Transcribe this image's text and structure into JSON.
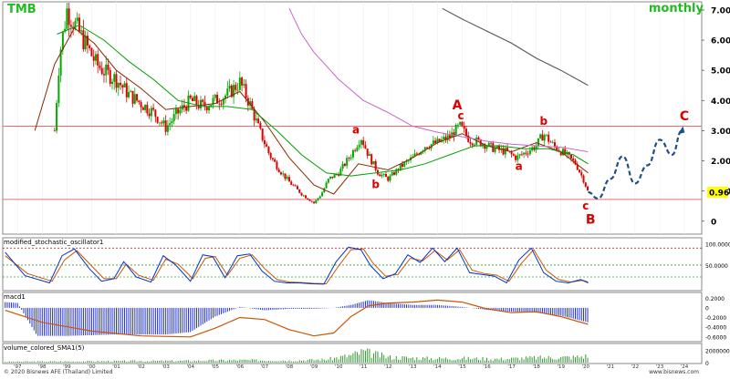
{
  "header": {
    "symbol": "TMB",
    "timeframe": "monthly"
  },
  "colors": {
    "header_text": "#22bb22",
    "candle_up": "#00aa00",
    "candle_down": "#dd0000",
    "ma_fast": "#8b2a00",
    "ma_mid": "#00a000",
    "ma_slow": "#cc66cc",
    "ma_long": "#555555",
    "wave_label": "#dd0000",
    "projection": "#1f4e8c",
    "level_line": "#e07070",
    "price_tag_bg": "#ffff00",
    "stoch_k": "#0033cc",
    "stoch_d": "#cc5500",
    "macd_hist": "#2233cc",
    "macd_signal": "#cc5500",
    "volume_bar": "#339933"
  },
  "chart_data": {
    "type": "line",
    "price_axis": {
      "ticks": [
        "7.00",
        "6.00",
        "5.00",
        "4.00",
        "3.00",
        "2.00",
        "1.00",
        "0"
      ],
      "tick_values": [
        7,
        6,
        5,
        4,
        3,
        2,
        1,
        0
      ],
      "ylim": [
        -0.4,
        7.15
      ],
      "last_price_label": "0.96"
    },
    "x_axis": {
      "labels": [
        "'97",
        "'98",
        "'99",
        "'00",
        "'01",
        "'02",
        "'03",
        "'04",
        "'05",
        "'06",
        "'07",
        "'08",
        "'09",
        "'10",
        "'11",
        "'12",
        "'13",
        "'14",
        "'15",
        "'16",
        "'17",
        "'18",
        "'19",
        "'20",
        "'21",
        "'22",
        "'23",
        "'24"
      ],
      "xlim": [
        1996.4,
        2024.7
      ]
    },
    "horizontal_levels": [
      3.15,
      0.72
    ],
    "price_series": {
      "x": [
        1998.5,
        1998.7,
        1999.0,
        1999.4,
        1999.8,
        2000.2,
        2000.6,
        2001.0,
        2001.5,
        2002.0,
        2002.5,
        2003.0,
        2003.5,
        2004.0,
        2004.5,
        2005.0,
        2005.5,
        2006.0,
        2006.4,
        2006.8,
        2007.2,
        2007.6,
        2008.0,
        2008.5,
        2009.0,
        2009.3,
        2009.6,
        2010.0,
        2010.5,
        2010.9,
        2011.2,
        2011.6,
        2012.0,
        2012.5,
        2013.0,
        2013.5,
        2014.0,
        2014.5,
        2014.9,
        2015.3,
        2015.8,
        2016.3,
        2016.8,
        2017.2,
        2017.6,
        2018.0,
        2018.3,
        2018.7,
        2019.2,
        2019.6,
        2019.9,
        2020.1
      ],
      "close": [
        3.0,
        5.5,
        7.0,
        6.4,
        5.8,
        5.2,
        4.9,
        4.7,
        4.2,
        3.9,
        3.6,
        3.1,
        3.6,
        4.0,
        3.8,
        4.0,
        4.2,
        4.6,
        3.9,
        3.0,
        2.2,
        1.7,
        1.3,
        0.9,
        0.6,
        0.9,
        1.4,
        1.6,
        2.2,
        2.8,
        2.2,
        1.6,
        1.4,
        1.8,
        2.1,
        2.5,
        2.6,
        2.8,
        3.15,
        2.7,
        2.6,
        2.4,
        2.3,
        2.1,
        2.3,
        2.5,
        2.9,
        2.5,
        2.2,
        1.9,
        1.4,
        0.96
      ]
    },
    "moving_averages": [
      {
        "x": [
          1997.7,
          1998.5,
          1999.3,
          2000.1,
          2001.0,
          2002.0,
          2003.0,
          2004.0,
          2005.0,
          2006.0,
          2007.0,
          2008.0,
          2009.0,
          2009.8,
          2010.8,
          2012.0,
          2013.0,
          2014.0,
          2015.0,
          2016.0,
          2017.0,
          2018.0,
          2019.0,
          2020.1
        ],
        "values": [
          3.0,
          5.2,
          6.4,
          5.9,
          5.0,
          4.4,
          3.7,
          3.8,
          3.9,
          4.3,
          3.3,
          2.1,
          1.2,
          0.9,
          1.9,
          1.7,
          2.1,
          2.6,
          2.9,
          2.5,
          2.3,
          2.6,
          2.3,
          1.6
        ]
      },
      {
        "x": [
          1998.6,
          1999.5,
          2000.5,
          2001.5,
          2002.5,
          2003.5,
          2004.5,
          2005.5,
          2006.5,
          2007.5,
          2008.5,
          2009.5,
          2010.5,
          2011.5,
          2012.5,
          2013.5,
          2014.5,
          2015.5,
          2016.5,
          2017.5,
          2018.5,
          2019.5,
          2020.1
        ],
        "values": [
          6.2,
          6.5,
          6.0,
          5.3,
          4.7,
          4.0,
          3.8,
          3.8,
          3.7,
          3.0,
          2.2,
          1.6,
          1.5,
          1.6,
          1.7,
          1.9,
          2.2,
          2.5,
          2.5,
          2.4,
          2.4,
          2.2,
          1.9
        ]
      },
      {
        "x": [
          2008.0,
          2008.5,
          2009.0,
          2010.0,
          2011.0,
          2012.0,
          2013.0,
          2014.0,
          2015.0,
          2016.0,
          2017.0,
          2018.0,
          2019.0,
          2020.1
        ],
        "values": [
          7.05,
          6.2,
          5.6,
          4.7,
          4.0,
          3.6,
          3.15,
          2.95,
          2.8,
          2.65,
          2.55,
          2.5,
          2.45,
          2.3
        ]
      },
      {
        "x": [
          2014.2,
          2015.0,
          2016.0,
          2017.0,
          2018.0,
          2019.0,
          2020.1
        ],
        "values": [
          7.05,
          6.7,
          6.3,
          5.9,
          5.4,
          5.0,
          4.5
        ]
      }
    ],
    "projection": {
      "x": [
        2020.1,
        2020.5,
        2021.0,
        2021.5,
        2022.0,
        2022.5,
        2023.0,
        2023.5,
        2023.9
      ],
      "values": [
        0.96,
        0.75,
        1.4,
        2.15,
        1.25,
        1.85,
        2.7,
        2.2,
        3.0
      ]
    },
    "wave_labels": [
      {
        "text": "a",
        "x": 2010.7,
        "y": 2.9
      },
      {
        "text": "b",
        "x": 2011.5,
        "y": 1.1
      },
      {
        "text": "A",
        "x": 2014.8,
        "y": 3.7
      },
      {
        "text": "c",
        "x": 2014.95,
        "y": 3.38
      },
      {
        "text": "a",
        "x": 2017.3,
        "y": 1.7
      },
      {
        "text": "b",
        "x": 2018.3,
        "y": 3.2
      },
      {
        "text": "c",
        "x": 2020.0,
        "y": 0.38
      },
      {
        "text": "B",
        "x": 2020.2,
        "y": -0.08
      },
      {
        "text": "C",
        "x": 2024.0,
        "y": 3.35
      }
    ],
    "stochastic": {
      "title": "modified_stochastic_oscillator1",
      "ticks": [
        "100.0000",
        "50.0000"
      ],
      "tick_values": [
        100,
        50
      ],
      "ylim": [
        -8,
        112
      ],
      "levels": [
        90,
        50,
        22
      ],
      "k": {
        "x": [
          1996.5,
          1997.3,
          1998.3,
          1998.8,
          1999.3,
          1999.9,
          2000.4,
          2000.9,
          2001.3,
          2001.8,
          2002.4,
          2002.9,
          2003.4,
          2004.0,
          2004.5,
          2004.9,
          2005.4,
          2005.9,
          2006.4,
          2006.9,
          2007.4,
          2007.9,
          2008.4,
          2008.9,
          2009.4,
          2009.9,
          2010.4,
          2010.9,
          2011.3,
          2011.8,
          2012.3,
          2012.8,
          2013.3,
          2013.8,
          2014.3,
          2014.8,
          2015.3,
          2015.8,
          2016.3,
          2016.8,
          2017.3,
          2017.8,
          2018.3,
          2018.8,
          2019.3,
          2019.8,
          2020.1
        ],
        "values": [
          80,
          25,
          8,
          72,
          88,
          42,
          12,
          18,
          58,
          22,
          10,
          72,
          50,
          12,
          74,
          70,
          20,
          72,
          76,
          36,
          12,
          8,
          8,
          6,
          5,
          58,
          92,
          86,
          48,
          18,
          30,
          74,
          56,
          90,
          58,
          90,
          32,
          28,
          24,
          8,
          62,
          90,
          32,
          12,
          8,
          16,
          8
        ]
      },
      "d": {
        "x": [
          1996.5,
          1997.4,
          1998.4,
          1998.9,
          1999.4,
          2000.0,
          2000.5,
          2001.0,
          2001.4,
          2001.9,
          2002.5,
          2003.0,
          2003.5,
          2004.1,
          2004.6,
          2005.0,
          2005.5,
          2006.0,
          2006.5,
          2007.0,
          2007.5,
          2008.0,
          2008.5,
          2009.0,
          2009.5,
          2010.0,
          2010.5,
          2011.0,
          2011.4,
          2011.9,
          2012.4,
          2012.9,
          2013.4,
          2013.9,
          2014.4,
          2014.9,
          2015.4,
          2015.9,
          2016.4,
          2016.9,
          2017.4,
          2017.9,
          2018.4,
          2018.9,
          2019.4,
          2019.9,
          2020.1
        ],
        "values": [
          72,
          30,
          12,
          62,
          84,
          48,
          18,
          18,
          52,
          26,
          14,
          64,
          52,
          18,
          66,
          70,
          26,
          66,
          74,
          42,
          16,
          10,
          9,
          7,
          6,
          48,
          86,
          88,
          54,
          24,
          28,
          66,
          60,
          84,
          62,
          86,
          38,
          30,
          26,
          12,
          54,
          86,
          38,
          16,
          10,
          14,
          10
        ]
      }
    },
    "macd": {
      "title": "macd1",
      "ticks": [
        "0.2000",
        "0",
        "-0.2000",
        "-0.4000",
        "-0.6000"
      ],
      "tick_values": [
        0.2,
        0,
        -0.2,
        -0.4,
        -0.6
      ],
      "ylim": [
        -0.68,
        0.3
      ],
      "signal": {
        "x": [
          1996.5,
          1998.0,
          2000.0,
          2002.0,
          2004.0,
          2005.0,
          2006.0,
          2007.0,
          2008.0,
          2009.0,
          2009.8,
          2010.5,
          2011.2,
          2012.0,
          2013.0,
          2014.0,
          2015.0,
          2016.0,
          2017.0,
          2018.0,
          2019.0,
          2020.1
        ],
        "values": [
          -0.05,
          -0.3,
          -0.48,
          -0.58,
          -0.6,
          -0.42,
          -0.2,
          -0.24,
          -0.45,
          -0.58,
          -0.52,
          -0.18,
          0.04,
          0.1,
          0.12,
          0.16,
          0.12,
          -0.02,
          -0.1,
          -0.08,
          -0.18,
          -0.34
        ]
      },
      "histogram": {
        "x_start": 1996.5,
        "x_end": 2020.1,
        "envelope_x": [
          1996.5,
          1997.0,
          1997.8,
          1999.0,
          2001.0,
          2003.0,
          2004.0,
          2005.0,
          2006.0,
          2007.0,
          2008.0,
          2009.0,
          2009.8,
          2010.5,
          2011.2,
          2012.0,
          2013.0,
          2014.0,
          2015.0,
          2016.0,
          2017.0,
          2018.0,
          2019.0,
          2020.1
        ],
        "envelope_values": [
          0.12,
          0.1,
          -0.58,
          -0.58,
          -0.55,
          -0.55,
          -0.5,
          -0.18,
          0.02,
          -0.05,
          -0.02,
          -0.02,
          0.0,
          0.06,
          0.16,
          0.1,
          0.06,
          0.06,
          0.02,
          -0.04,
          -0.08,
          -0.1,
          -0.16,
          -0.3
        ]
      }
    },
    "volume": {
      "title": "volume_colored_SMA1(5)",
      "ticks": [
        "20000000",
        "0"
      ],
      "tick_values": [
        20000000,
        0
      ],
      "ylim": [
        0,
        30000000
      ],
      "envelope_x": [
        1996.5,
        2004.0,
        2006.0,
        2008.0,
        2009.5,
        2010.5,
        2011.0,
        2012.0,
        2013.5,
        2015.0,
        2016.5,
        2018.0,
        2019.5,
        2020.1
      ],
      "envelope_values": [
        1500000,
        3000000,
        4000000,
        3500000,
        5000000,
        12000000,
        18000000,
        9000000,
        7000000,
        7000000,
        6000000,
        8000000,
        9000000,
        11000000
      ]
    }
  },
  "footer": {
    "copyright": "© 2020 Bisnews AFE (Thailand) Limited",
    "source": "www.bisnews.com"
  }
}
